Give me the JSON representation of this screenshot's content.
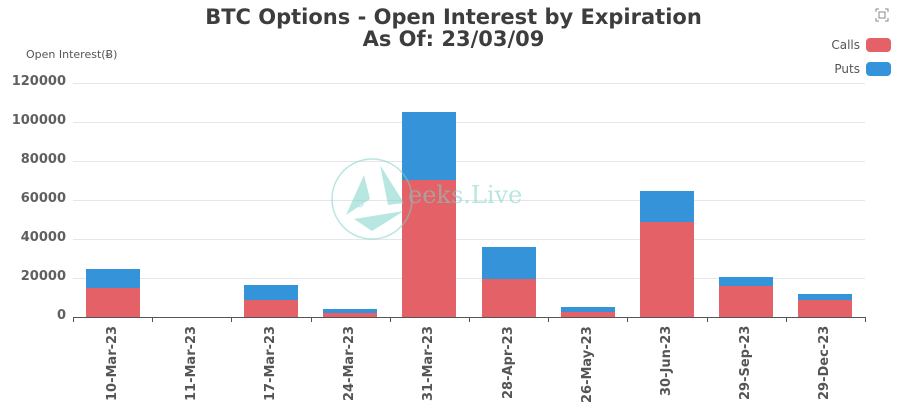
{
  "header": {
    "title": "BTC Options - Open Interest by Expiration",
    "subtitle": "As Of: 23/03/09"
  },
  "toolbar": {
    "expand_icon": "fullscreen-icon"
  },
  "watermark": {
    "text": "eeks.Live",
    "logo_letter": "e"
  },
  "legend": [
    {
      "label": "Calls",
      "color": "#e36167"
    },
    {
      "label": "Puts",
      "color": "#3593d9"
    }
  ],
  "axis": {
    "ylabel": "Open Interest(Ƀ)",
    "yticks": [
      "120000",
      "100000",
      "80000",
      "60000",
      "40000",
      "20000",
      "0"
    ]
  },
  "chart_data": {
    "type": "bar",
    "stacked": true,
    "title": "BTC Options - Open Interest by Expiration",
    "subtitle": "As Of: 23/03/09",
    "xlabel": "",
    "ylabel": "Open Interest(Ƀ)",
    "ylim": [
      0,
      120000
    ],
    "grid": true,
    "legend_position": "top-right",
    "categories": [
      "10-Mar-23",
      "11-Mar-23",
      "17-Mar-23",
      "24-Mar-23",
      "31-Mar-23",
      "28-Apr-23",
      "26-May-23",
      "30-Jun-23",
      "29-Sep-23",
      "29-Dec-23"
    ],
    "series": [
      {
        "name": "Calls",
        "color": "#e36167",
        "values": [
          14900,
          0,
          8700,
          2200,
          70300,
          19300,
          2400,
          48900,
          16100,
          8500
        ]
      },
      {
        "name": "Puts",
        "color": "#3593d9",
        "values": [
          9600,
          0,
          7700,
          1700,
          35000,
          16400,
          2900,
          15900,
          4600,
          3100
        ]
      }
    ]
  }
}
